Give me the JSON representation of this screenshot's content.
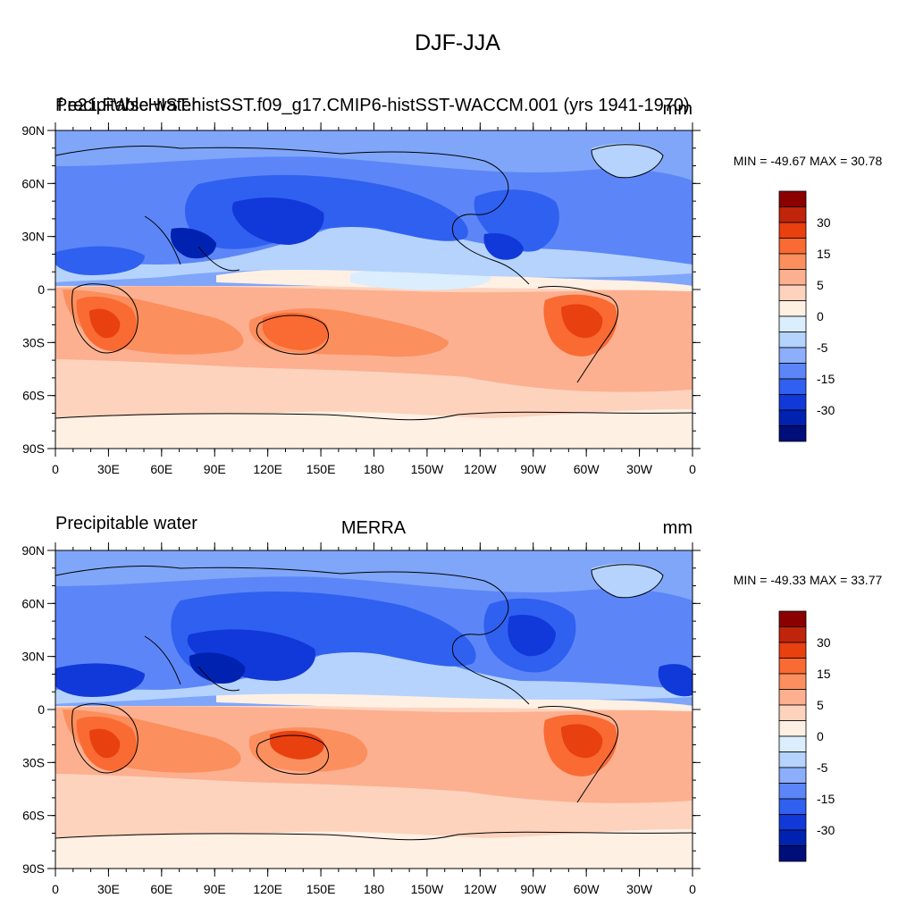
{
  "figure": {
    "title": "DJF-JJA",
    "units": "mm"
  },
  "axes": {
    "x_tick_labels": [
      "0",
      "30E",
      "60E",
      "90E",
      "120E",
      "150E",
      "180",
      "150W",
      "120W",
      "90W",
      "60W",
      "30W",
      "0"
    ],
    "y_tick_labels": [
      "90N",
      "60N",
      "30N",
      "0",
      "30S",
      "60S",
      "90S"
    ]
  },
  "colorbar": {
    "labels": [
      "30",
      "15",
      "5",
      "0",
      "-5",
      "-15",
      "-30"
    ],
    "colors": [
      "#8b0000",
      "#c0240a",
      "#e8400f",
      "#fa6a33",
      "#fc8f5e",
      "#fcb090",
      "#fdd3bd",
      "#fff0e4",
      "#dbeefe",
      "#b5d3fd",
      "#8caefb",
      "#5c86f7",
      "#3060f0",
      "#1138d8",
      "#0022b0",
      "#000e7a"
    ]
  },
  "panels": [
    {
      "left_label": "Precipitable water",
      "center_label": "f.e21.FWscHIST.histSST.f09_g17.CMIP6-histSST-WACCM.001 (yrs 1941-1970)",
      "right_label": "mm",
      "min_max_text": "MIN = -49.67 MAX =  30.78",
      "min": -49.67,
      "max": 30.78
    },
    {
      "left_label": "Precipitable water",
      "center_label": "MERRA",
      "right_label": "mm",
      "min_max_text": "MIN = -49.33 MAX =  33.77",
      "min": -49.33,
      "max": 33.77
    }
  ]
}
